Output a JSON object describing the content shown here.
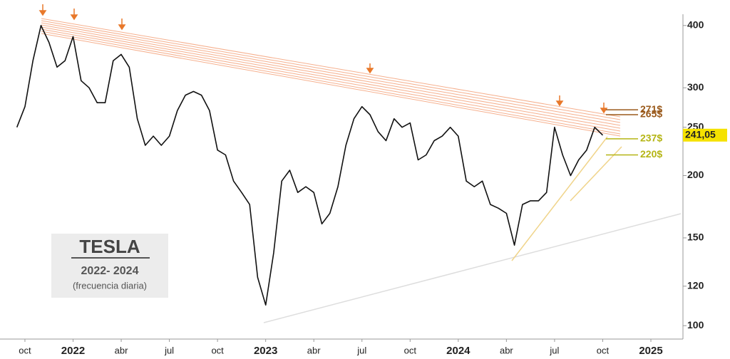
{
  "chart_data": {
    "type": "line",
    "title": "TESLA",
    "subtitle": "2022- 2024",
    "note": "(frecuencia diaria)",
    "log_scale": true,
    "color": "#111111",
    "categories": [
      null,
      "oct",
      null,
      null,
      null,
      null,
      null,
      "2022",
      null,
      null,
      null,
      null,
      null,
      "abr",
      null,
      null,
      null,
      null,
      null,
      "jul",
      null,
      null,
      null,
      null,
      null,
      "oct",
      null,
      null,
      null,
      null,
      null,
      "2023",
      null,
      null,
      null,
      null,
      null,
      "abr",
      null,
      null,
      null,
      null,
      null,
      "jul",
      null,
      null,
      null,
      null,
      null,
      "oct",
      null,
      null,
      null,
      null,
      null,
      "2024",
      null,
      null,
      null,
      null,
      null,
      "abr",
      null,
      null,
      null,
      null,
      null,
      "jul",
      null,
      null,
      null,
      null,
      null,
      "oct",
      null,
      null,
      null,
      null,
      null,
      "2025"
    ],
    "values": [
      250,
      275,
      340,
      400,
      370,
      330,
      340,
      380,
      310,
      300,
      280,
      280,
      340,
      350,
      330,
      260,
      230,
      240,
      230,
      240,
      270,
      290,
      295,
      290,
      270,
      225,
      220,
      195,
      185,
      175,
      125,
      110,
      140,
      195,
      205,
      185,
      190,
      185,
      160,
      168,
      190,
      230,
      260,
      275,
      265,
      245,
      235,
      260,
      250,
      255,
      215,
      220,
      235,
      240,
      250,
      240,
      195,
      190,
      195,
      175,
      172,
      168,
      145,
      175,
      178,
      178,
      185,
      250,
      220,
      200,
      215,
      225,
      250,
      241.05,
      null,
      null,
      null,
      null,
      null,
      null
    ],
    "ylim": [
      94,
      450
    ],
    "yticks": [
      100,
      120,
      150,
      200,
      250,
      300,
      400
    ],
    "last_price": {
      "value": 241.05,
      "label": "241,05"
    },
    "annotations": [
      {
        "text": "271$",
        "value": 271,
        "color": "#9a5a1c"
      },
      {
        "text": "265$",
        "value": 265,
        "color": "#9a5a1c"
      },
      {
        "text": "237$",
        "value": 237,
        "color": "#b5b515"
      },
      {
        "text": "220$",
        "value": 220,
        "color": "#b5b515"
      }
    ]
  }
}
